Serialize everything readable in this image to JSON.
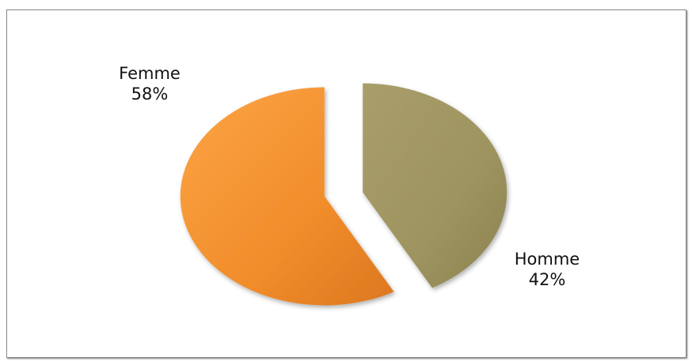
{
  "chart_data": {
    "type": "pie",
    "slices": [
      {
        "label": "Femme",
        "value": 58,
        "value_label": "58%",
        "color": "#f28f2e"
      },
      {
        "label": "Homme",
        "value": 42,
        "value_label": "42%",
        "color": "#a09663"
      }
    ]
  }
}
